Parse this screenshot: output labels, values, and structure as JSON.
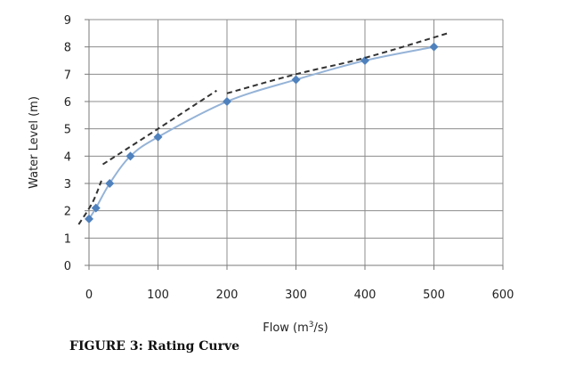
{
  "figure": {
    "caption": "FIGURE 3: Rating Curve"
  },
  "chart_data": {
    "type": "line",
    "title": "",
    "xlabel_prefix": "Flow (m",
    "xlabel_sup": "3",
    "xlabel_suffix": "/s)",
    "ylabel": "Water Level (m)",
    "xlim": [
      0,
      600
    ],
    "ylim": [
      0,
      9
    ],
    "xticks": [
      0,
      100,
      200,
      300,
      400,
      500,
      600
    ],
    "yticks": [
      0,
      1,
      2,
      3,
      4,
      5,
      6,
      7,
      8,
      9
    ],
    "grid": true,
    "legend": "none",
    "series": [
      {
        "style": "solid-markers",
        "color": "#95B3D7",
        "marker_color": "#4F81BD",
        "x": [
          0,
          10,
          30,
          60,
          100,
          200,
          300,
          400,
          500
        ],
        "y": [
          1.7,
          2.1,
          3.0,
          4.0,
          4.7,
          6.0,
          6.8,
          7.5,
          8.0
        ]
      },
      {
        "style": "dashed",
        "color": "#333333",
        "segments": [
          {
            "x": [
              -15,
              5,
              18
            ],
            "y": [
              1.5,
              2.3,
              3.1
            ]
          },
          {
            "x": [
              20,
              100,
              185
            ],
            "y": [
              3.7,
              5.0,
              6.4
            ]
          },
          {
            "x": [
              200,
              300,
              400,
              520
            ],
            "y": [
              6.3,
              7.0,
              7.6,
              8.5
            ]
          }
        ]
      }
    ]
  }
}
